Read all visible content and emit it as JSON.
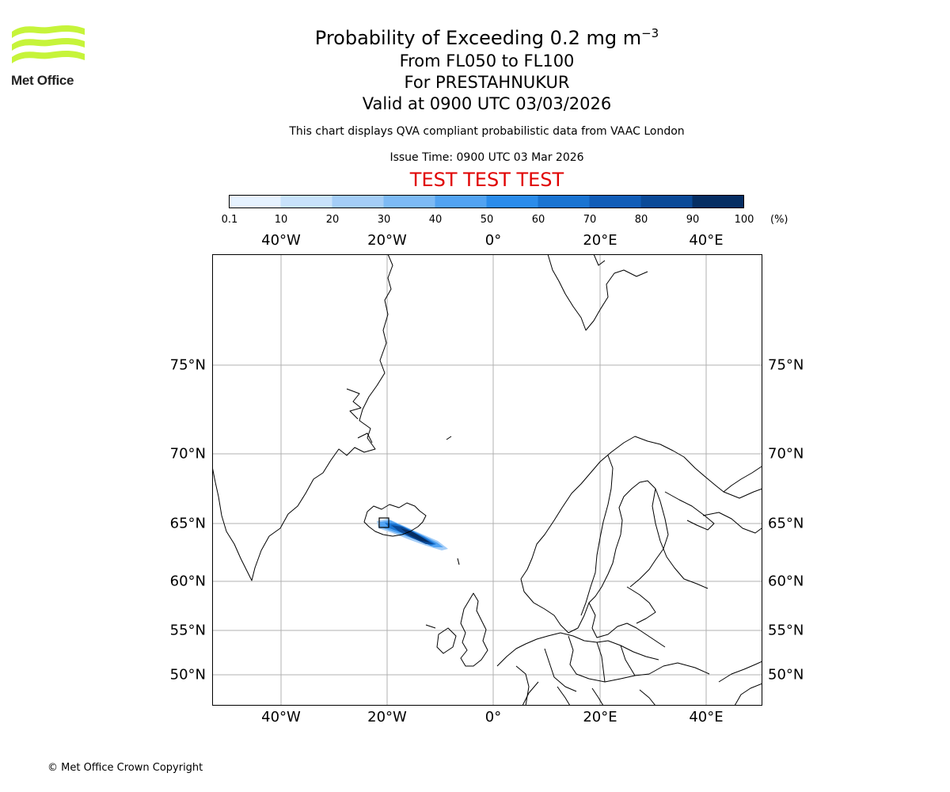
{
  "logo": {
    "text": "Met Office",
    "icon": "met-office-wave-icon",
    "color": "#c6f43a"
  },
  "header": {
    "title_main": "Probability of Exceeding 0.2 mg m",
    "title_unit_exponent": "−3",
    "flight_levels": "From FL050 to FL100",
    "volcano": "For PRESTAHNUKUR",
    "valid_time": "Valid at 0900 UTC 03/03/2026",
    "description": "This chart displays QVA compliant probabilistic data from VAAC London",
    "issue_time": "Issue Time: 0900 UTC 03 Mar 2026",
    "test_banner": "TEST TEST TEST",
    "test_banner_color": "#e00000"
  },
  "colorbar": {
    "ticks": [
      "0.1",
      "10",
      "20",
      "30",
      "40",
      "50",
      "60",
      "70",
      "80",
      "90",
      "100"
    ],
    "unit": "(%)",
    "colors": [
      "#e6f2ff",
      "#c8e2fb",
      "#a4cdf7",
      "#7dbaf5",
      "#52a3f2",
      "#2b8ceb",
      "#1a74d2",
      "#115db8",
      "#0b4a98",
      "#062e63"
    ]
  },
  "map": {
    "lon_labels": [
      "40°W",
      "20°W",
      "0°",
      "20°E",
      "40°E"
    ],
    "lat_labels": [
      "75°N",
      "70°N",
      "65°N",
      "60°N",
      "55°N",
      "50°N"
    ],
    "gridline_color": "#b0b0b0"
  },
  "footer": {
    "copyright": "© Met Office Crown Copyright"
  }
}
